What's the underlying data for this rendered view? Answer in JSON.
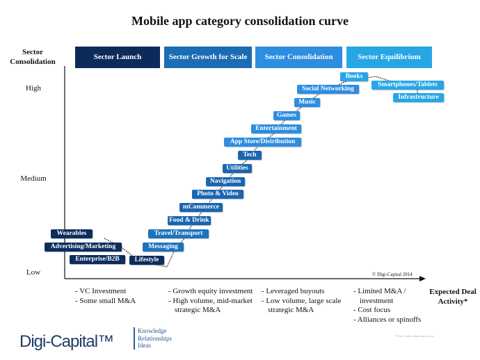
{
  "title": "Mobile app category consolidation curve",
  "y_axis": {
    "label": "Sector Consolidation",
    "ticks": [
      "High",
      "Medium",
      "Low"
    ]
  },
  "x_axis": {
    "label": "Expected Deal Activity*"
  },
  "phases": [
    {
      "label": "Sector Launch",
      "color": "#0c2a5a"
    },
    {
      "label": "Sector Growth for Scale",
      "color": "#1b6cb4"
    },
    {
      "label": "Sector Consolidation",
      "color": "#2d8de0"
    },
    {
      "label": "Sector Equilibrium",
      "color": "#27a6e6"
    }
  ],
  "categories": [
    {
      "label": "Wearables",
      "color": "#0c2d5e"
    },
    {
      "label": "Advertising/Marketing",
      "color": "#0c2d5e"
    },
    {
      "label": "Enterprise/B2B",
      "color": "#0c2d5e"
    },
    {
      "label": "Lifestyle",
      "color": "#0c2d5e"
    },
    {
      "label": "Messaging",
      "color": "#1d72bc"
    },
    {
      "label": "Travel/Transport",
      "color": "#1d72bc"
    },
    {
      "label": "Food & Drink",
      "color": "#1a66b0"
    },
    {
      "label": "mCommerce",
      "color": "#1a66b0"
    },
    {
      "label": "Photo & Video",
      "color": "#1a66b0"
    },
    {
      "label": "Navigation",
      "color": "#1a66b0"
    },
    {
      "label": "Utilities",
      "color": "#1a66b0"
    },
    {
      "label": "Tech",
      "color": "#1a66b0"
    },
    {
      "label": "App Store/Distribution",
      "color": "#2d8de0"
    },
    {
      "label": "Entertainment",
      "color": "#2d8de0"
    },
    {
      "label": "Games",
      "color": "#2d8de0"
    },
    {
      "label": "Music",
      "color": "#2d8de0"
    },
    {
      "label": "Social Networking",
      "color": "#2d8de0"
    },
    {
      "label": "Books",
      "color": "#27a6e6"
    },
    {
      "label": "Smartphones/Tablets",
      "color": "#27a6e6"
    },
    {
      "label": "Infrastructure",
      "color": "#27a6e6"
    }
  ],
  "deal_activity": [
    [
      "- VC Investment",
      "- Some small M&A"
    ],
    [
      "- Growth equity investment",
      "- High volume, mid-market strategic M&A"
    ],
    [
      "- Leveraged buyouts",
      "- Low volume, large scale strategic M&A"
    ],
    [
      "- Limited M&A / investment",
      "- Cost focus",
      "- Alliances or spinoffs"
    ]
  ],
  "copyright": "© Digi-Capital 2014",
  "footnote": "* Note: earlier deals may occur",
  "logo": {
    "name": "Digi-Capital™",
    "tagline": [
      "Knowledge",
      "Relationships",
      "Ideas"
    ]
  }
}
